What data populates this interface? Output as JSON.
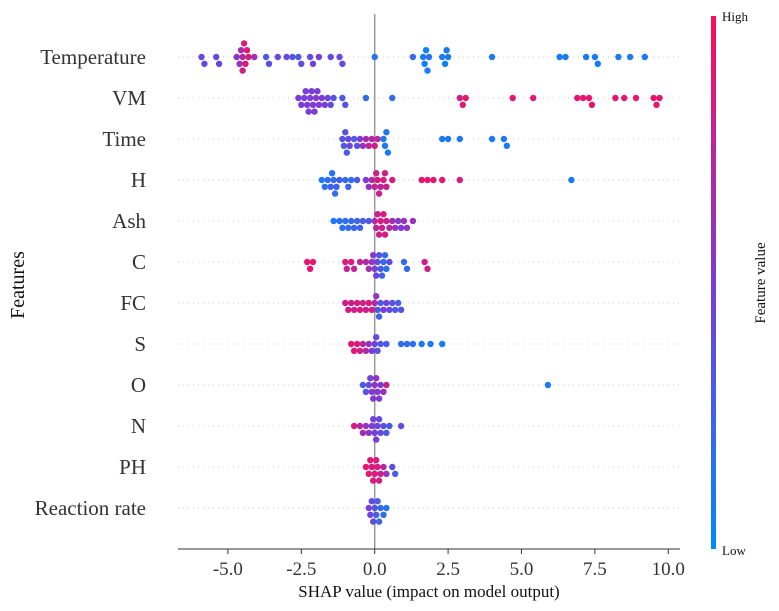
{
  "chart_data": {
    "type": "scatter",
    "subtype": "shap-beeswarm",
    "xlabel": "SHAP value (impact on model output)",
    "ylabel": "Features",
    "xlim": [
      -6.7,
      10.4
    ],
    "x_ticks": [
      -5.0,
      -2.5,
      0.0,
      2.5,
      5.0,
      7.5,
      10.0
    ],
    "x_tick_labels": [
      "-5.0",
      "-2.5",
      "0.0",
      "2.5",
      "5.0",
      "7.5",
      "10.0"
    ],
    "zero_line": 0.0,
    "colorbar": {
      "title": "Feature value",
      "high_label": "High",
      "low_label": "Low",
      "high_color": "#ff0d57",
      "low_color": "#008afb"
    },
    "features": [
      {
        "name": "Temperature",
        "points": [
          [
            -5.9,
            0.45
          ],
          [
            -5.8,
            0.4
          ],
          [
            -5.4,
            0.4
          ],
          [
            -5.3,
            0.42
          ],
          [
            -4.7,
            0.55
          ],
          [
            -4.6,
            0.6
          ],
          [
            -4.55,
            0.65
          ],
          [
            -4.5,
            0.7
          ],
          [
            -4.5,
            0.8
          ],
          [
            -4.45,
            0.85
          ],
          [
            -4.4,
            0.9
          ],
          [
            -4.35,
            0.9
          ],
          [
            -4.3,
            0.85
          ],
          [
            -4.1,
            0.65
          ],
          [
            -3.7,
            0.3
          ],
          [
            -3.6,
            0.35
          ],
          [
            -3.3,
            0.4
          ],
          [
            -3.0,
            0.4
          ],
          [
            -2.8,
            0.35
          ],
          [
            -2.6,
            0.3
          ],
          [
            -2.5,
            0.4
          ],
          [
            -2.2,
            0.4
          ],
          [
            -2.1,
            0.45
          ],
          [
            -1.9,
            0.5
          ],
          [
            -1.5,
            0.4
          ],
          [
            -1.2,
            0.4
          ],
          [
            -1.1,
            0.4
          ],
          [
            0.0,
            0.15
          ],
          [
            1.3,
            0.2
          ],
          [
            1.65,
            0.1
          ],
          [
            1.7,
            0.05
          ],
          [
            1.75,
            0.05
          ],
          [
            1.8,
            0.1
          ],
          [
            1.85,
            0.15
          ],
          [
            2.3,
            0.1
          ],
          [
            2.4,
            0.05
          ],
          [
            2.45,
            0.1
          ],
          [
            2.5,
            0.1
          ],
          [
            4.0,
            0.1
          ],
          [
            6.3,
            0.1
          ],
          [
            6.5,
            0.1
          ],
          [
            7.2,
            0.1
          ],
          [
            7.5,
            0.1
          ],
          [
            7.6,
            0.1
          ],
          [
            8.3,
            0.1
          ],
          [
            8.7,
            0.1
          ],
          [
            9.2,
            0.1
          ]
        ]
      },
      {
        "name": "VM",
        "points": [
          [
            -2.6,
            0.5
          ],
          [
            -2.5,
            0.5
          ],
          [
            -2.4,
            0.45
          ],
          [
            -2.35,
            0.5
          ],
          [
            -2.3,
            0.5
          ],
          [
            -2.25,
            0.5
          ],
          [
            -2.2,
            0.5
          ],
          [
            -2.15,
            0.5
          ],
          [
            -2.1,
            0.5
          ],
          [
            -2.05,
            0.5
          ],
          [
            -2.0,
            0.55
          ],
          [
            -1.95,
            0.5
          ],
          [
            -1.9,
            0.5
          ],
          [
            -1.8,
            0.5
          ],
          [
            -1.7,
            0.5
          ],
          [
            -1.6,
            0.45
          ],
          [
            -1.5,
            0.4
          ],
          [
            -1.4,
            0.35
          ],
          [
            -1.1,
            0.3
          ],
          [
            -1.0,
            0.35
          ],
          [
            -0.3,
            0.2
          ],
          [
            0.6,
            0.2
          ],
          [
            2.9,
            0.8
          ],
          [
            3.0,
            0.85
          ],
          [
            3.1,
            0.9
          ],
          [
            4.7,
            0.9
          ],
          [
            5.4,
            0.9
          ],
          [
            6.9,
            0.9
          ],
          [
            7.1,
            0.9
          ],
          [
            7.3,
            0.9
          ],
          [
            7.4,
            0.9
          ],
          [
            8.2,
            0.9
          ],
          [
            8.5,
            0.9
          ],
          [
            8.9,
            0.9
          ],
          [
            9.5,
            0.9
          ],
          [
            9.6,
            0.9
          ],
          [
            9.7,
            0.9
          ]
        ]
      },
      {
        "name": "Time",
        "points": [
          [
            -1.1,
            0.35
          ],
          [
            -1.05,
            0.3
          ],
          [
            -1.0,
            0.35
          ],
          [
            -0.95,
            0.3
          ],
          [
            -0.9,
            0.4
          ],
          [
            -0.85,
            0.45
          ],
          [
            -0.7,
            0.3
          ],
          [
            -0.6,
            0.35
          ],
          [
            -0.5,
            0.5
          ],
          [
            -0.4,
            0.6
          ],
          [
            -0.3,
            0.7
          ],
          [
            -0.2,
            0.75
          ],
          [
            -0.1,
            0.7
          ],
          [
            0.0,
            0.8
          ],
          [
            0.1,
            0.75
          ],
          [
            0.3,
            0.1
          ],
          [
            0.35,
            0.1
          ],
          [
            0.4,
            0.15
          ],
          [
            0.45,
            0.1
          ],
          [
            2.3,
            0.1
          ],
          [
            2.5,
            0.1
          ],
          [
            2.9,
            0.1
          ],
          [
            4.0,
            0.1
          ],
          [
            4.4,
            0.1
          ],
          [
            4.5,
            0.1
          ]
        ]
      },
      {
        "name": "H",
        "points": [
          [
            -1.8,
            0.1
          ],
          [
            -1.7,
            0.15
          ],
          [
            -1.6,
            0.2
          ],
          [
            -1.5,
            0.25
          ],
          [
            -1.45,
            0.15
          ],
          [
            -1.4,
            0.2
          ],
          [
            -1.35,
            0.2
          ],
          [
            -1.3,
            0.25
          ],
          [
            -1.2,
            0.3
          ],
          [
            -1.0,
            0.2
          ],
          [
            -0.9,
            0.25
          ],
          [
            -0.8,
            0.2
          ],
          [
            -0.6,
            0.3
          ],
          [
            -0.3,
            0.5
          ],
          [
            -0.2,
            0.6
          ],
          [
            -0.1,
            0.7
          ],
          [
            0.0,
            0.75
          ],
          [
            0.05,
            0.8
          ],
          [
            0.1,
            0.85
          ],
          [
            0.15,
            0.8
          ],
          [
            0.2,
            0.75
          ],
          [
            0.3,
            0.85
          ],
          [
            0.35,
            0.8
          ],
          [
            0.4,
            0.8
          ],
          [
            0.6,
            0.85
          ],
          [
            1.6,
            0.9
          ],
          [
            1.8,
            0.9
          ],
          [
            2.0,
            0.9
          ],
          [
            2.3,
            0.9
          ],
          [
            2.9,
            0.85
          ],
          [
            6.7,
            0.1
          ]
        ]
      },
      {
        "name": "Ash",
        "points": [
          [
            -1.4,
            0.1
          ],
          [
            -1.2,
            0.15
          ],
          [
            -1.1,
            0.15
          ],
          [
            -1.0,
            0.2
          ],
          [
            -0.9,
            0.2
          ],
          [
            -0.8,
            0.2
          ],
          [
            -0.7,
            0.25
          ],
          [
            -0.6,
            0.25
          ],
          [
            -0.5,
            0.25
          ],
          [
            -0.4,
            0.3
          ],
          [
            -0.2,
            0.3
          ],
          [
            0.0,
            0.7
          ],
          [
            0.05,
            0.75
          ],
          [
            0.1,
            0.8
          ],
          [
            0.15,
            0.8
          ],
          [
            0.2,
            0.85
          ],
          [
            0.25,
            0.8
          ],
          [
            0.3,
            0.85
          ],
          [
            0.35,
            0.85
          ],
          [
            0.4,
            0.8
          ],
          [
            0.5,
            0.7
          ],
          [
            0.6,
            0.65
          ],
          [
            0.7,
            0.6
          ],
          [
            0.8,
            0.55
          ],
          [
            0.9,
            0.5
          ],
          [
            1.0,
            0.6
          ],
          [
            1.1,
            0.6
          ],
          [
            1.3,
            0.6
          ]
        ]
      },
      {
        "name": "C",
        "points": [
          [
            -2.3,
            0.9
          ],
          [
            -2.2,
            0.9
          ],
          [
            -2.1,
            0.9
          ],
          [
            -1.0,
            0.85
          ],
          [
            -0.95,
            0.8
          ],
          [
            -0.8,
            0.85
          ],
          [
            -0.7,
            0.75
          ],
          [
            -0.5,
            0.75
          ],
          [
            -0.3,
            0.7
          ],
          [
            -0.2,
            0.65
          ],
          [
            -0.1,
            0.6
          ],
          [
            -0.05,
            0.55
          ],
          [
            0.0,
            0.5
          ],
          [
            0.05,
            0.45
          ],
          [
            0.1,
            0.4
          ],
          [
            0.15,
            0.35
          ],
          [
            0.2,
            0.3
          ],
          [
            0.25,
            0.25
          ],
          [
            0.3,
            0.2
          ],
          [
            0.35,
            0.2
          ],
          [
            0.4,
            0.15
          ],
          [
            0.5,
            0.4
          ],
          [
            1.0,
            0.2
          ],
          [
            1.1,
            0.2
          ],
          [
            1.7,
            0.8
          ],
          [
            1.8,
            0.8
          ]
        ]
      },
      {
        "name": "FC",
        "points": [
          [
            -1.0,
            0.8
          ],
          [
            -0.9,
            0.8
          ],
          [
            -0.8,
            0.8
          ],
          [
            -0.7,
            0.8
          ],
          [
            -0.6,
            0.85
          ],
          [
            -0.5,
            0.85
          ],
          [
            -0.4,
            0.8
          ],
          [
            -0.3,
            0.8
          ],
          [
            -0.2,
            0.85
          ],
          [
            -0.1,
            0.85
          ],
          [
            0.0,
            0.7
          ],
          [
            0.05,
            0.6
          ],
          [
            0.1,
            0.3
          ],
          [
            0.15,
            0.25
          ],
          [
            0.2,
            0.3
          ],
          [
            0.3,
            0.5
          ],
          [
            0.4,
            0.45
          ],
          [
            0.5,
            0.4
          ],
          [
            0.6,
            0.35
          ],
          [
            0.7,
            0.3
          ],
          [
            0.8,
            0.3
          ],
          [
            0.9,
            0.35
          ]
        ]
      },
      {
        "name": "S",
        "points": [
          [
            -0.8,
            0.9
          ],
          [
            -0.7,
            0.9
          ],
          [
            -0.6,
            0.85
          ],
          [
            -0.5,
            0.8
          ],
          [
            -0.4,
            0.75
          ],
          [
            -0.3,
            0.7
          ],
          [
            -0.2,
            0.6
          ],
          [
            -0.1,
            0.5
          ],
          [
            0.0,
            0.45
          ],
          [
            0.05,
            0.4
          ],
          [
            0.1,
            0.35
          ],
          [
            0.2,
            0.3
          ],
          [
            0.4,
            0.3
          ],
          [
            0.9,
            0.2
          ],
          [
            1.1,
            0.2
          ],
          [
            1.3,
            0.15
          ],
          [
            1.6,
            0.1
          ],
          [
            1.9,
            0.1
          ],
          [
            2.3,
            0.1
          ]
        ]
      },
      {
        "name": "O",
        "points": [
          [
            -0.4,
            0.3
          ],
          [
            -0.3,
            0.35
          ],
          [
            -0.2,
            0.4
          ],
          [
            -0.15,
            0.45
          ],
          [
            -0.1,
            0.5
          ],
          [
            -0.05,
            0.55
          ],
          [
            0.0,
            0.6
          ],
          [
            0.05,
            0.6
          ],
          [
            0.1,
            0.55
          ],
          [
            0.15,
            0.5
          ],
          [
            0.2,
            0.5
          ],
          [
            0.3,
            0.6
          ],
          [
            0.4,
            0.8
          ],
          [
            5.9,
            0.1
          ]
        ]
      },
      {
        "name": "N",
        "points": [
          [
            -0.7,
            0.85
          ],
          [
            -0.5,
            0.7
          ],
          [
            -0.4,
            0.65
          ],
          [
            -0.3,
            0.6
          ],
          [
            -0.2,
            0.55
          ],
          [
            -0.1,
            0.5
          ],
          [
            -0.05,
            0.5
          ],
          [
            0.0,
            0.5
          ],
          [
            0.05,
            0.5
          ],
          [
            0.1,
            0.45
          ],
          [
            0.15,
            0.4
          ],
          [
            0.2,
            0.4
          ],
          [
            0.3,
            0.35
          ],
          [
            0.4,
            0.3
          ],
          [
            0.5,
            0.3
          ],
          [
            0.9,
            0.4
          ]
        ]
      },
      {
        "name": "PH",
        "points": [
          [
            -0.3,
            0.9
          ],
          [
            -0.2,
            0.9
          ],
          [
            -0.15,
            0.9
          ],
          [
            -0.1,
            0.85
          ],
          [
            -0.05,
            0.85
          ],
          [
            0.0,
            0.85
          ],
          [
            0.05,
            0.85
          ],
          [
            0.1,
            0.85
          ],
          [
            0.15,
            0.8
          ],
          [
            0.2,
            0.8
          ],
          [
            0.3,
            0.7
          ],
          [
            0.4,
            0.6
          ],
          [
            0.6,
            0.4
          ],
          [
            0.7,
            0.3
          ]
        ]
      },
      {
        "name": "Reaction rate",
        "points": [
          [
            -0.2,
            0.5
          ],
          [
            -0.15,
            0.45
          ],
          [
            -0.1,
            0.4
          ],
          [
            -0.05,
            0.4
          ],
          [
            0.0,
            0.35
          ],
          [
            0.05,
            0.3
          ],
          [
            0.1,
            0.3
          ],
          [
            0.15,
            0.25
          ],
          [
            0.2,
            0.2
          ],
          [
            0.3,
            0.2
          ],
          [
            0.4,
            0.15
          ]
        ]
      }
    ]
  }
}
